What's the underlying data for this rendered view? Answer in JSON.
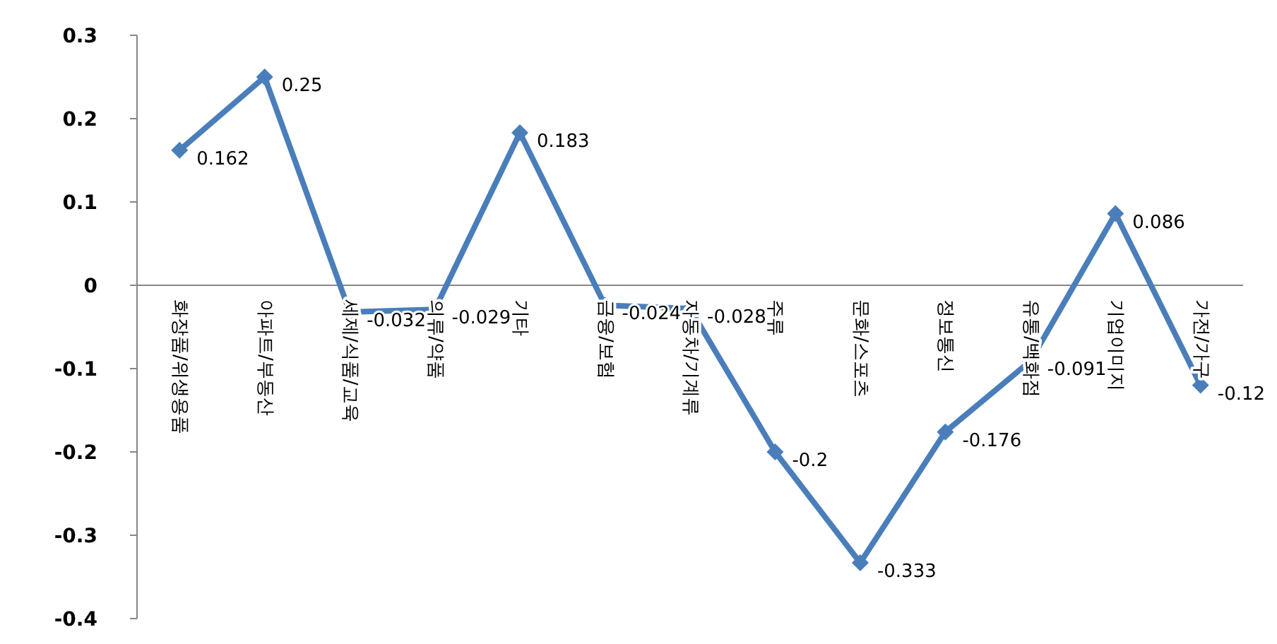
{
  "chart_data": {
    "type": "line",
    "categories": [
      "화장품/위생용품",
      "아파트/부동산",
      "세제/식품/교육",
      "의류/약품",
      "기타",
      "금융/보험",
      "자동차/기계류",
      "주류",
      "문화/스포츠",
      "정보통신",
      "유통/백화점",
      "기업이미지",
      "가전/가구"
    ],
    "series": [
      {
        "color": "#4a7ebb",
        "values": [
          0.162,
          0.25,
          -0.032,
          -0.029,
          0.183,
          -0.024,
          -0.028,
          -0.2,
          -0.333,
          -0.176,
          -0.091,
          0.086,
          -0.12
        ]
      }
    ],
    "ylim": [
      -0.4,
      0.3
    ],
    "yticks": [
      -0.4,
      -0.3,
      -0.2,
      -0.1,
      0,
      0.1,
      0.2,
      0.3
    ],
    "data_labels": true,
    "marker": "diamond",
    "grid": false
  }
}
